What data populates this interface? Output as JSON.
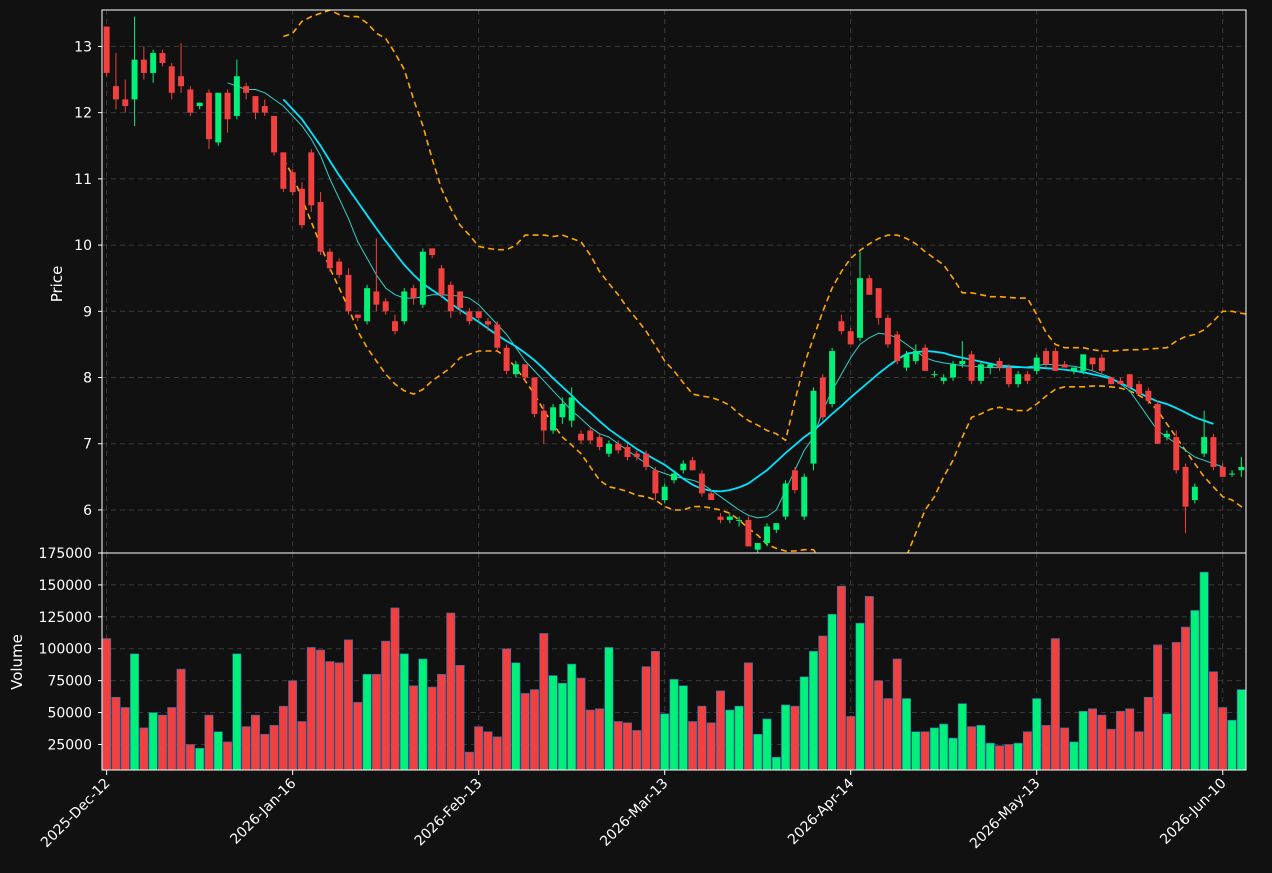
{
  "colors": {
    "background": "#111111",
    "up": "#00f07a",
    "down": "#f04040",
    "ma_fast": "#2fd1c9",
    "ma_slow": "#00e5ff",
    "bollinger": "#ffa500",
    "grid": "#3a3a3a",
    "text": "#ffffff"
  },
  "chart_data": {
    "type": "candlestick",
    "price_panel": {
      "ylabel": "Price",
      "ylim": [
        5.35,
        13.55
      ],
      "y_ticks": [
        6,
        7,
        8,
        9,
        10,
        11,
        12,
        13
      ],
      "grid": true
    },
    "volume_panel": {
      "ylabel": "Volume",
      "ylim": [
        5000,
        175000
      ],
      "y_ticks": [
        25000,
        50000,
        75000,
        100000,
        125000,
        150000,
        175000
      ],
      "grid": true
    },
    "x_ticks": [
      {
        "index": 0,
        "label": "2025-Dec-12"
      },
      {
        "index": 20,
        "label": "2026-Jan-16"
      },
      {
        "index": 40,
        "label": "2026-Feb-13"
      },
      {
        "index": 60,
        "label": "2026-Mar-13"
      },
      {
        "index": 80,
        "label": "2026-Apr-14"
      },
      {
        "index": 100,
        "label": "2026-May-13"
      },
      {
        "index": 120,
        "label": "2026-Jun-10"
      }
    ],
    "n_bars": 123,
    "candles": [
      [
        13.3,
        13.3,
        12.55,
        12.6,
        108000
      ],
      [
        12.4,
        12.9,
        12.05,
        12.2,
        62000
      ],
      [
        12.2,
        12.5,
        12.0,
        12.1,
        54000
      ],
      [
        12.2,
        13.45,
        11.8,
        12.8,
        96000
      ],
      [
        12.8,
        13.0,
        12.5,
        12.6,
        38000
      ],
      [
        12.6,
        12.95,
        12.45,
        12.9,
        50000
      ],
      [
        12.9,
        12.95,
        12.7,
        12.75,
        48000
      ],
      [
        12.7,
        12.75,
        12.2,
        12.3,
        54000
      ],
      [
        12.55,
        13.05,
        12.3,
        12.4,
        84000
      ],
      [
        12.35,
        12.4,
        11.95,
        12.0,
        25000
      ],
      [
        12.1,
        12.15,
        12.05,
        12.15,
        22000
      ],
      [
        12.3,
        12.35,
        11.45,
        11.6,
        48000
      ],
      [
        11.55,
        12.3,
        11.5,
        12.3,
        35000
      ],
      [
        12.3,
        12.35,
        11.7,
        11.9,
        27000
      ],
      [
        11.95,
        12.8,
        11.9,
        12.55,
        96000
      ],
      [
        12.4,
        12.45,
        12.2,
        12.3,
        39000
      ],
      [
        12.25,
        12.25,
        11.9,
        12.0,
        48000
      ],
      [
        12.1,
        12.2,
        11.95,
        12.0,
        33000
      ],
      [
        11.95,
        11.95,
        11.35,
        11.4,
        40000
      ],
      [
        11.4,
        11.4,
        10.8,
        10.85,
        55000
      ],
      [
        11.1,
        11.15,
        10.75,
        10.8,
        75000
      ],
      [
        10.85,
        10.95,
        10.25,
        10.3,
        43000
      ],
      [
        11.4,
        11.45,
        10.5,
        10.6,
        101000
      ],
      [
        10.65,
        10.8,
        9.85,
        9.9,
        99000
      ],
      [
        9.9,
        9.95,
        9.6,
        9.65,
        90000
      ],
      [
        9.75,
        9.8,
        9.5,
        9.55,
        89000
      ],
      [
        9.55,
        9.65,
        8.95,
        9.0,
        107000
      ],
      [
        8.95,
        8.95,
        8.85,
        8.9,
        58000
      ],
      [
        8.85,
        9.4,
        8.8,
        9.35,
        80000
      ],
      [
        9.3,
        10.1,
        9.0,
        9.1,
        80000
      ],
      [
        9.15,
        9.2,
        8.95,
        9.0,
        106000
      ],
      [
        8.85,
        8.95,
        8.65,
        8.7,
        132000
      ],
      [
        8.85,
        9.35,
        8.8,
        9.3,
        96000
      ],
      [
        9.35,
        9.4,
        9.1,
        9.2,
        71000
      ],
      [
        9.1,
        9.95,
        9.05,
        9.9,
        92000
      ],
      [
        9.95,
        9.95,
        9.8,
        9.85,
        70000
      ],
      [
        9.65,
        9.7,
        9.2,
        9.25,
        80000
      ],
      [
        9.4,
        9.45,
        8.9,
        9.0,
        128000
      ],
      [
        9.3,
        9.3,
        8.95,
        9.05,
        87000
      ],
      [
        9.0,
        9.05,
        8.8,
        8.85,
        19000
      ],
      [
        9.0,
        9.0,
        8.85,
        8.9,
        39000
      ],
      [
        8.85,
        8.9,
        8.7,
        8.8,
        35000
      ],
      [
        8.8,
        8.85,
        8.4,
        8.45,
        31000
      ],
      [
        8.45,
        8.5,
        8.05,
        8.1,
        100000
      ],
      [
        8.05,
        8.25,
        8.0,
        8.2,
        89000
      ],
      [
        8.2,
        8.2,
        7.95,
        8.0,
        65000
      ],
      [
        8.0,
        8.0,
        7.4,
        7.45,
        68000
      ],
      [
        7.5,
        7.6,
        7.0,
        7.2,
        112000
      ],
      [
        7.2,
        7.6,
        7.15,
        7.55,
        79000
      ],
      [
        7.4,
        7.7,
        7.3,
        7.6,
        73000
      ],
      [
        7.35,
        7.85,
        7.25,
        7.7,
        88000
      ],
      [
        7.15,
        7.2,
        7.0,
        7.05,
        77000
      ],
      [
        7.2,
        7.25,
        7.0,
        7.05,
        52000
      ],
      [
        7.1,
        7.15,
        6.9,
        6.95,
        53000
      ],
      [
        6.85,
        7.05,
        6.8,
        7.0,
        101000
      ],
      [
        7.0,
        7.05,
        6.85,
        6.9,
        43000
      ],
      [
        6.95,
        7.0,
        6.75,
        6.8,
        42000
      ],
      [
        6.85,
        6.9,
        6.75,
        6.8,
        36000
      ],
      [
        6.85,
        6.9,
        6.6,
        6.65,
        86000
      ],
      [
        6.6,
        6.65,
        6.15,
        6.25,
        98000
      ],
      [
        6.15,
        6.4,
        6.1,
        6.35,
        49000
      ],
      [
        6.45,
        6.6,
        6.4,
        6.55,
        76000
      ],
      [
        6.6,
        6.75,
        6.55,
        6.7,
        71000
      ],
      [
        6.75,
        6.8,
        6.6,
        6.6,
        43000
      ],
      [
        6.55,
        6.6,
        6.2,
        6.25,
        55000
      ],
      [
        6.25,
        6.3,
        6.15,
        6.15,
        42000
      ],
      [
        5.9,
        5.95,
        5.8,
        5.85,
        67000
      ],
      [
        5.85,
        5.95,
        5.8,
        5.9,
        52000
      ],
      [
        5.85,
        5.9,
        5.75,
        5.85,
        55000
      ],
      [
        5.85,
        5.9,
        5.45,
        5.45,
        89000
      ],
      [
        5.4,
        5.5,
        5.35,
        5.5,
        33000
      ],
      [
        5.5,
        5.8,
        5.45,
        5.75,
        45000
      ],
      [
        5.7,
        5.8,
        5.65,
        5.8,
        15000
      ],
      [
        5.9,
        6.45,
        5.85,
        6.4,
        56000
      ],
      [
        6.6,
        6.65,
        6.25,
        6.3,
        55000
      ],
      [
        5.9,
        6.55,
        5.85,
        6.5,
        78000
      ],
      [
        6.7,
        7.85,
        6.6,
        7.8,
        98000
      ],
      [
        8.0,
        8.05,
        7.35,
        7.4,
        110000
      ],
      [
        7.6,
        8.45,
        7.55,
        8.4,
        127000
      ],
      [
        8.85,
        8.95,
        8.65,
        8.7,
        149000
      ],
      [
        8.7,
        8.75,
        8.5,
        8.5,
        47000
      ],
      [
        8.6,
        9.9,
        8.55,
        9.5,
        120000
      ],
      [
        9.5,
        9.55,
        9.25,
        9.25,
        141000
      ],
      [
        9.35,
        9.35,
        8.8,
        8.9,
        75000
      ],
      [
        8.9,
        8.95,
        8.45,
        8.5,
        61000
      ],
      [
        8.65,
        8.7,
        8.2,
        8.25,
        92000
      ],
      [
        8.15,
        8.4,
        8.1,
        8.35,
        61000
      ],
      [
        8.25,
        8.5,
        8.2,
        8.4,
        35000
      ],
      [
        8.45,
        8.5,
        8.1,
        8.1,
        35000
      ],
      [
        8.05,
        8.1,
        8.0,
        8.05,
        38000
      ],
      [
        7.95,
        8.05,
        7.9,
        8.0,
        41000
      ],
      [
        8.0,
        8.25,
        7.95,
        8.2,
        30000
      ],
      [
        8.2,
        8.55,
        8.15,
        8.25,
        57000
      ],
      [
        8.35,
        8.4,
        7.9,
        7.95,
        39000
      ],
      [
        7.95,
        8.25,
        7.9,
        8.2,
        40000
      ],
      [
        8.15,
        8.2,
        8.05,
        8.2,
        26000
      ],
      [
        8.25,
        8.3,
        8.1,
        8.15,
        24000
      ],
      [
        8.15,
        8.2,
        7.85,
        7.9,
        25000
      ],
      [
        7.9,
        8.1,
        7.85,
        8.05,
        26000
      ],
      [
        8.05,
        8.1,
        7.9,
        7.95,
        35000
      ],
      [
        8.1,
        8.35,
        8.05,
        8.3,
        61000
      ],
      [
        8.4,
        8.45,
        8.15,
        8.2,
        40000
      ],
      [
        8.4,
        8.45,
        8.1,
        8.1,
        108000
      ],
      [
        8.2,
        8.25,
        8.15,
        8.15,
        38000
      ],
      [
        8.1,
        8.15,
        8.05,
        8.15,
        27000
      ],
      [
        8.1,
        8.35,
        8.05,
        8.35,
        51000
      ],
      [
        8.3,
        8.3,
        8.1,
        8.2,
        53000
      ],
      [
        8.3,
        8.35,
        8.05,
        8.1,
        48000
      ],
      [
        8.0,
        8.0,
        7.9,
        7.9,
        37000
      ],
      [
        7.95,
        8.0,
        7.9,
        7.9,
        51000
      ],
      [
        8.05,
        8.05,
        7.85,
        7.85,
        53000
      ],
      [
        7.9,
        7.95,
        7.75,
        7.75,
        35000
      ],
      [
        7.8,
        7.85,
        7.6,
        7.65,
        62000
      ],
      [
        7.6,
        7.65,
        7.0,
        7.0,
        103000
      ],
      [
        7.1,
        7.2,
        7.05,
        7.15,
        49000
      ],
      [
        7.1,
        7.2,
        6.55,
        6.6,
        105000
      ],
      [
        6.65,
        6.7,
        5.65,
        6.05,
        117000
      ],
      [
        6.15,
        6.4,
        6.1,
        6.35,
        130000
      ],
      [
        6.85,
        7.5,
        6.8,
        7.1,
        160000
      ],
      [
        7.1,
        7.15,
        6.6,
        6.65,
        82000
      ],
      [
        6.65,
        6.7,
        6.5,
        6.5,
        54000
      ],
      [
        6.55,
        6.6,
        6.5,
        6.55,
        44000
      ],
      [
        6.6,
        6.8,
        6.5,
        6.65,
        68000
      ]
    ],
    "ma_fast": {
      "start_index": 13,
      "values": [
        12.45,
        12.4,
        12.35,
        12.35,
        12.3,
        12.2,
        12.1,
        11.95,
        11.8,
        11.6,
        11.35,
        11.0,
        10.7,
        10.4,
        10.05,
        9.8,
        9.55,
        9.35,
        9.25,
        9.2,
        9.2,
        9.22,
        9.25,
        9.25,
        9.24,
        9.23,
        9.2,
        9.1,
        8.95,
        8.8,
        8.65,
        8.45,
        8.25,
        8.1,
        7.95,
        7.8,
        7.65,
        7.5,
        7.38,
        7.25,
        7.15,
        7.1,
        7.0,
        6.9,
        6.8,
        6.7,
        6.6,
        6.55,
        6.5,
        6.48,
        6.45,
        6.4,
        6.3,
        6.2,
        6.1,
        6.0,
        5.92,
        5.88,
        5.9,
        6.0,
        6.3,
        6.6,
        6.9,
        7.1,
        7.5,
        7.8,
        8.05,
        8.3,
        8.5,
        8.6,
        8.67,
        8.65,
        8.6,
        8.5,
        8.4,
        8.3,
        8.25,
        8.22,
        8.2,
        8.18,
        8.17,
        8.16,
        8.15,
        8.15,
        8.15,
        8.15,
        8.16,
        8.18,
        8.2,
        8.19,
        8.18,
        8.17,
        8.14,
        8.1,
        8.05,
        8.0,
        7.9,
        7.8,
        7.6,
        7.4,
        7.2,
        7.1,
        7.0,
        6.9,
        6.8,
        6.75,
        6.7,
        6.65
      ]
    },
    "ma_slow": {
      "start_index": 19,
      "values": [
        12.2,
        12.05,
        11.9,
        11.7,
        11.5,
        11.27,
        11.05,
        10.85,
        10.65,
        10.45,
        10.25,
        10.06,
        9.88,
        9.7,
        9.55,
        9.42,
        9.32,
        9.23,
        9.12,
        9.02,
        8.93,
        8.84,
        8.74,
        8.64,
        8.55,
        8.47,
        8.37,
        8.26,
        8.13,
        7.99,
        7.86,
        7.73,
        7.59,
        7.47,
        7.34,
        7.22,
        7.12,
        7.02,
        6.92,
        6.84,
        6.76,
        6.68,
        6.58,
        6.47,
        6.38,
        6.32,
        6.29,
        6.28,
        6.3,
        6.34,
        6.4,
        6.5,
        6.6,
        6.73,
        6.86,
        6.98,
        7.1,
        7.2,
        7.32,
        7.45,
        7.57,
        7.7,
        7.82,
        7.94,
        8.06,
        8.17,
        8.27,
        8.36,
        8.38,
        8.4,
        8.39,
        8.37,
        8.33,
        8.3,
        8.27,
        8.24,
        8.21,
        8.18,
        8.17,
        8.16,
        8.15,
        8.15,
        8.14,
        8.13,
        8.12,
        8.1,
        8.08,
        8.05,
        8.02,
        7.98,
        7.92,
        7.85,
        7.77,
        7.7,
        7.64,
        7.6,
        7.54,
        7.47,
        7.4,
        7.35,
        7.3
      ]
    },
    "boll_upper": {
      "start_index": 19,
      "values": [
        13.15,
        13.2,
        13.38,
        13.45,
        13.5,
        13.55,
        13.48,
        13.45,
        13.45,
        13.35,
        13.2,
        13.12,
        12.9,
        12.65,
        12.2,
        11.8,
        11.3,
        10.85,
        10.55,
        10.3,
        10.15,
        9.98,
        9.95,
        9.93,
        9.93,
        10.0,
        10.15,
        10.15,
        10.15,
        10.13,
        10.15,
        10.1,
        10.05,
        9.85,
        9.6,
        9.42,
        9.25,
        9.05,
        8.88,
        8.7,
        8.48,
        8.25,
        8.1,
        7.92,
        7.75,
        7.72,
        7.7,
        7.65,
        7.58,
        7.45,
        7.35,
        7.28,
        7.2,
        7.15,
        7.05,
        7.65,
        8.2,
        8.6,
        9.0,
        9.35,
        9.6,
        9.8,
        9.92,
        10.02,
        10.1,
        10.15,
        10.15,
        10.1,
        10.02,
        9.9,
        9.8,
        9.7,
        9.5,
        9.28,
        9.28,
        9.25,
        9.22,
        9.22,
        9.21,
        9.2,
        9.2,
        8.95,
        8.68,
        8.5,
        8.45,
        8.45,
        8.45,
        8.42,
        8.4,
        8.4,
        8.41,
        8.42,
        8.42,
        8.43,
        8.44,
        8.45,
        8.55,
        8.62,
        8.65,
        8.72,
        8.85,
        9.0,
        9.0,
        8.97,
        8.95,
        8.9,
        8.8,
        8.72
      ]
    },
    "boll_lower": {
      "start_index": 19,
      "values": [
        11.3,
        11.05,
        10.7,
        10.35,
        10.0,
        9.65,
        9.35,
        9.05,
        8.7,
        8.45,
        8.25,
        8.05,
        7.9,
        7.8,
        7.75,
        7.82,
        7.95,
        8.05,
        8.15,
        8.3,
        8.35,
        8.4,
        8.4,
        8.4,
        8.3,
        8.15,
        7.95,
        7.75,
        7.5,
        7.3,
        7.1,
        6.98,
        6.85,
        6.65,
        6.45,
        6.35,
        6.32,
        6.28,
        6.22,
        6.2,
        6.15,
        6.05,
        6.0,
        6.0,
        6.05,
        6.05,
        6.03,
        6.0,
        5.95,
        5.85,
        5.72,
        5.62,
        5.48,
        5.42,
        5.38,
        5.38,
        5.4,
        5.4,
        5.2,
        4.9,
        4.6,
        4.5,
        4.5,
        4.5,
        4.6,
        4.75,
        5.0,
        5.3,
        5.65,
        6.0,
        6.2,
        6.5,
        6.75,
        7.1,
        7.4,
        7.45,
        7.52,
        7.55,
        7.52,
        7.5,
        7.5,
        7.6,
        7.72,
        7.82,
        7.86,
        7.86,
        7.86,
        7.87,
        7.87,
        7.86,
        7.84,
        7.8,
        7.73,
        7.65,
        7.5,
        7.3,
        7.1,
        6.9,
        6.7,
        6.5,
        6.35,
        6.2,
        6.15,
        6.05,
        6.0,
        5.95,
        5.88
      ]
    }
  }
}
